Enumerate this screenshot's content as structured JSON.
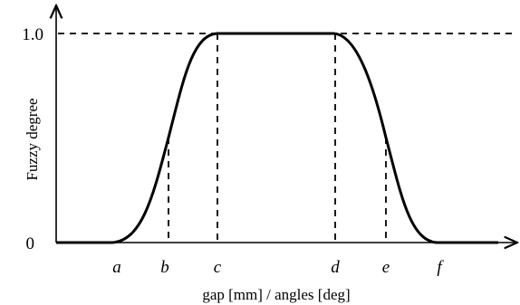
{
  "y_axis": {
    "title": "Fuzzy degree",
    "label_top": "1.0",
    "label_bottom": "0"
  },
  "x_axis": {
    "title": "gap [mm] / angles [deg]",
    "points": [
      "a",
      "b",
      "c",
      "d",
      "e",
      "f"
    ]
  },
  "membership": {
    "shape": "trapezoid-smooth",
    "peak_value": 1.0,
    "half_value": 0.5
  }
}
